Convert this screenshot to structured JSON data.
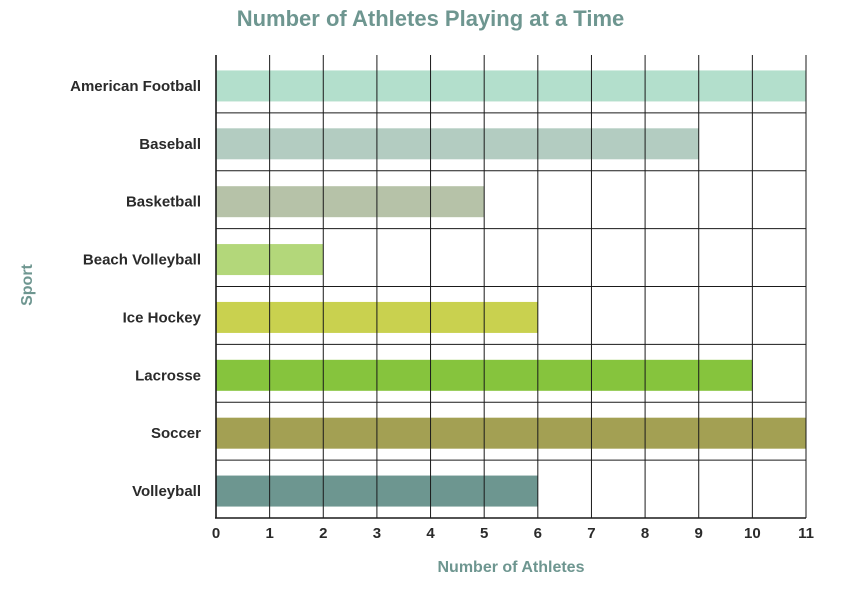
{
  "chart_data": {
    "type": "bar",
    "orientation": "horizontal",
    "title": "Number of Athletes Playing at a Time",
    "xlabel": "Number of Athletes",
    "ylabel": "Sport",
    "categories": [
      "American Football",
      "Baseball",
      "Basketball",
      "Beach Volleyball",
      "Ice Hockey",
      "Lacrosse",
      "Soccer",
      "Volleyball"
    ],
    "values": [
      11,
      9,
      5,
      2,
      6,
      10,
      11,
      6
    ],
    "colors": [
      "#b3dfcc",
      "#b3ccc1",
      "#b6c2a8",
      "#b3d77a",
      "#c9d14f",
      "#86c43d",
      "#a3a053",
      "#6d9690"
    ],
    "xlim": [
      0,
      11
    ],
    "xticks": [
      0,
      1,
      2,
      3,
      4,
      5,
      6,
      7,
      8,
      9,
      10,
      11
    ],
    "grid": true,
    "legend": "none"
  }
}
